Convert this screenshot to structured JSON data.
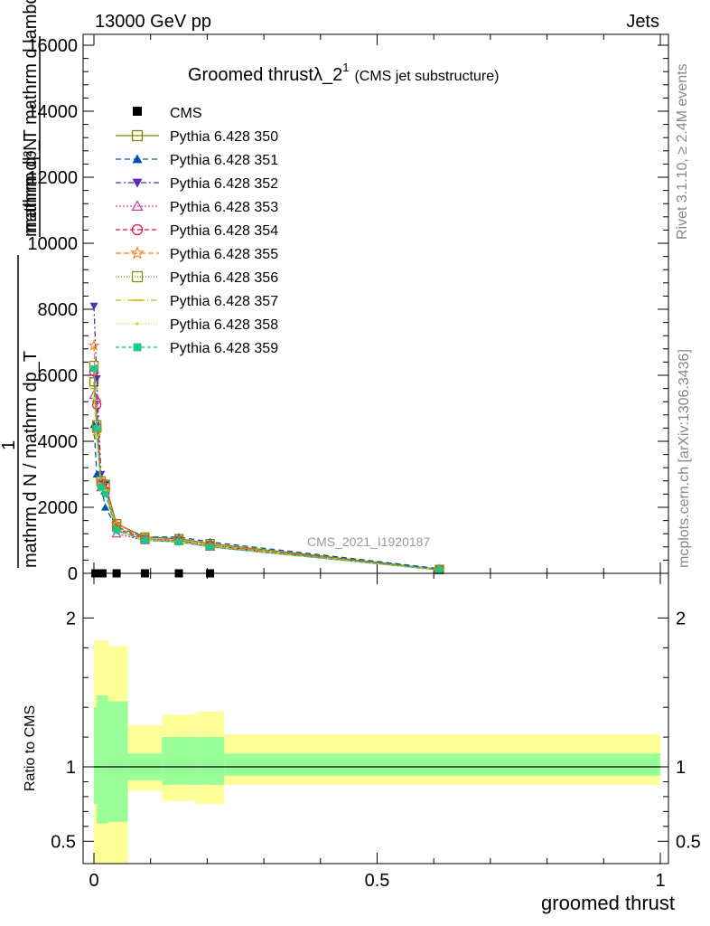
{
  "header": {
    "energy_label": "13000 GeV pp",
    "process_label": "Jets"
  },
  "chart_data": [
    {
      "type": "line",
      "title_main": "Groomed thrust",
      "title_lambda": "λ_2",
      "title_sup": "1",
      "title_sub": "(CMS jet substructure)",
      "ylabel_top": "mathrm d²N",
      "ylabel_top_right": "mathrm dp_T mathrm d lambda",
      "ylabel_one": "1",
      "ylabel_bottom": "mathrm d N / mathrm dp_T",
      "yticks": [
        0,
        2000,
        4000,
        6000,
        8000,
        10000,
        12000,
        14000,
        16000
      ],
      "ytick_labels": [
        "0",
        "2000",
        "4000",
        "6000",
        "8000",
        "10000",
        "12000",
        "14000",
        "16000"
      ],
      "ylim": [
        0,
        18000
      ],
      "xlim": [
        -0.02,
        1.0
      ],
      "watermark": "CMS_2021_I1920187",
      "data_series": {
        "name": "CMS",
        "x": [
          0.0025,
          0.0075,
          0.015,
          0.04,
          0.09,
          0.15,
          0.205
        ],
        "y": [
          0,
          0,
          0,
          0,
          0,
          0,
          0
        ]
      },
      "mc_x": [
        0.0,
        0.005,
        0.0125,
        0.02,
        0.04,
        0.09,
        0.15,
        0.205,
        0.61
      ],
      "series": [
        {
          "name": "Pythia 6.428 350",
          "color": "#808000",
          "marker": "square-open",
          "dash": "solid",
          "values": [
            5800,
            4400,
            2800,
            2700,
            1500,
            1100,
            1050,
            900,
            120
          ]
        },
        {
          "name": "Pythia 6.428 351",
          "color": "#0050b0",
          "marker": "triangle-up",
          "dash": "6,4",
          "values": [
            4500,
            3000,
            2700,
            2000,
            1400,
            1100,
            1100,
            950,
            140
          ]
        },
        {
          "name": "Pythia 6.428 352",
          "color": "#5a2bb0",
          "marker": "triangle-down",
          "dash": "6,3,2,3",
          "values": [
            8100,
            5900,
            3000,
            2700,
            1300,
            1000,
            950,
            800,
            110
          ]
        },
        {
          "name": "Pythia 6.428 353",
          "color": "#c83c96",
          "marker": "triangle-open",
          "dash": "2,2",
          "values": [
            5400,
            5300,
            2600,
            2500,
            1200,
            1000,
            1000,
            800,
            100
          ]
        },
        {
          "name": "Pythia 6.428 354",
          "color": "#e0103c",
          "marker": "circle-open",
          "dash": "5,3",
          "values": [
            6100,
            5100,
            2700,
            2500,
            1350,
            1050,
            1000,
            850,
            110
          ]
        },
        {
          "name": "Pythia 6.428 355",
          "color": "#f08028",
          "marker": "star-open",
          "dash": "6,3",
          "values": [
            6900,
            4300,
            2800,
            2500,
            1500,
            1050,
            1000,
            850,
            110
          ]
        },
        {
          "name": "Pythia 6.428 356",
          "color": "#8c8c14",
          "marker": "square-open",
          "dash": "1,2",
          "values": [
            6300,
            4500,
            2800,
            2600,
            1400,
            1050,
            1000,
            850,
            110
          ]
        },
        {
          "name": "Pythia 6.428 357",
          "color": "#d2b400",
          "marker": "tick",
          "dash": "6,3,1,3",
          "values": [
            5600,
            4200,
            2600,
            2500,
            1300,
            1000,
            950,
            800,
            100
          ]
        },
        {
          "name": "Pythia 6.428 358",
          "color": "#bee632",
          "marker": "dot",
          "dash": "1,2",
          "values": [
            5300,
            4100,
            2500,
            2500,
            1300,
            1000,
            950,
            800,
            100
          ]
        },
        {
          "name": "Pythia 6.428 359",
          "color": "#14c896",
          "marker": "square",
          "dash": "4,3",
          "values": [
            6200,
            4400,
            2600,
            2400,
            1300,
            1000,
            950,
            800,
            110
          ]
        }
      ]
    },
    {
      "type": "area",
      "ylabel": "Ratio to CMS",
      "xlabel": "groomed thrust",
      "xticks": [
        0,
        0.5,
        1
      ],
      "xtick_labels": [
        "0",
        "0.5",
        "1"
      ],
      "yticks": [
        0.5,
        1,
        2
      ],
      "ytick_labels": [
        "0.5",
        "1",
        "2"
      ],
      "ylim": [
        0.35,
        2.3
      ],
      "reference": 1.0,
      "bins": [
        {
          "x0": 0.0,
          "x1": 0.005,
          "inner": [
            0.75,
            1.4
          ],
          "outer": [
            0.3,
            1.85
          ]
        },
        {
          "x0": 0.005,
          "x1": 0.025,
          "inner": [
            0.62,
            1.48
          ],
          "outer": [
            0.3,
            1.85
          ]
        },
        {
          "x0": 0.025,
          "x1": 0.06,
          "inner": [
            0.63,
            1.44
          ],
          "outer": [
            0.3,
            1.81
          ]
        },
        {
          "x0": 0.06,
          "x1": 0.12,
          "inner": [
            0.91,
            1.09
          ],
          "outer": [
            0.84,
            1.28
          ]
        },
        {
          "x0": 0.12,
          "x1": 0.18,
          "inner": [
            0.88,
            1.2
          ],
          "outer": [
            0.77,
            1.35
          ]
        },
        {
          "x0": 0.18,
          "x1": 0.23,
          "inner": [
            0.88,
            1.2
          ],
          "outer": [
            0.75,
            1.37
          ]
        },
        {
          "x0": 0.23,
          "x1": 1.0,
          "inner": [
            0.94,
            1.09
          ],
          "outer": [
            0.88,
            1.22
          ]
        }
      ],
      "colors": {
        "inner": "#99ff99",
        "outer": "#ffff99",
        "reference": "#000000"
      }
    }
  ],
  "side_text": {
    "rivet": "Rivet 3.1.10, ≥ 2.4M events",
    "mcplots": "mcplots.cern.ch [arXiv:1306.3436]"
  }
}
